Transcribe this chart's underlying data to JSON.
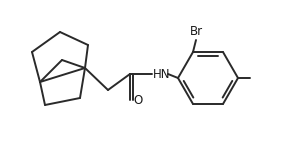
{
  "bg_color": "#ffffff",
  "line_color": "#2a2a2a",
  "line_width": 1.4,
  "text_color": "#1a1a1a",
  "font_size": 8.5,
  "br_label": "Br",
  "hn_label": "HN",
  "o_label": "O",
  "figsize": [
    2.98,
    1.55
  ],
  "dpi": 100
}
